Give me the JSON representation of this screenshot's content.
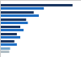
{
  "chart_data": {
    "type": "bar",
    "orientation": "horizontal",
    "categories": [
      null,
      null,
      null,
      null,
      null,
      null,
      null
    ],
    "series": [
      {
        "values": [
          430,
          200,
          155,
          120,
          100,
          85,
          60
        ],
        "colors": [
          "#1a3560",
          "#1a3560",
          "#1a3560",
          "#1a3560",
          "#1a3560",
          "#1a3560",
          "#7aa8cc"
        ]
      },
      {
        "values": [
          260,
          230,
          165,
          140,
          120,
          100,
          55
        ],
        "colors": [
          "#1e6fc5",
          "#1e6fc5",
          "#1e6fc5",
          "#1e6fc5",
          "#1e6fc5",
          "#1e6fc5",
          "#b0bec5"
        ]
      }
    ],
    "xlim": [
      0,
      480
    ],
    "tick_labels": false,
    "grid": false
  }
}
